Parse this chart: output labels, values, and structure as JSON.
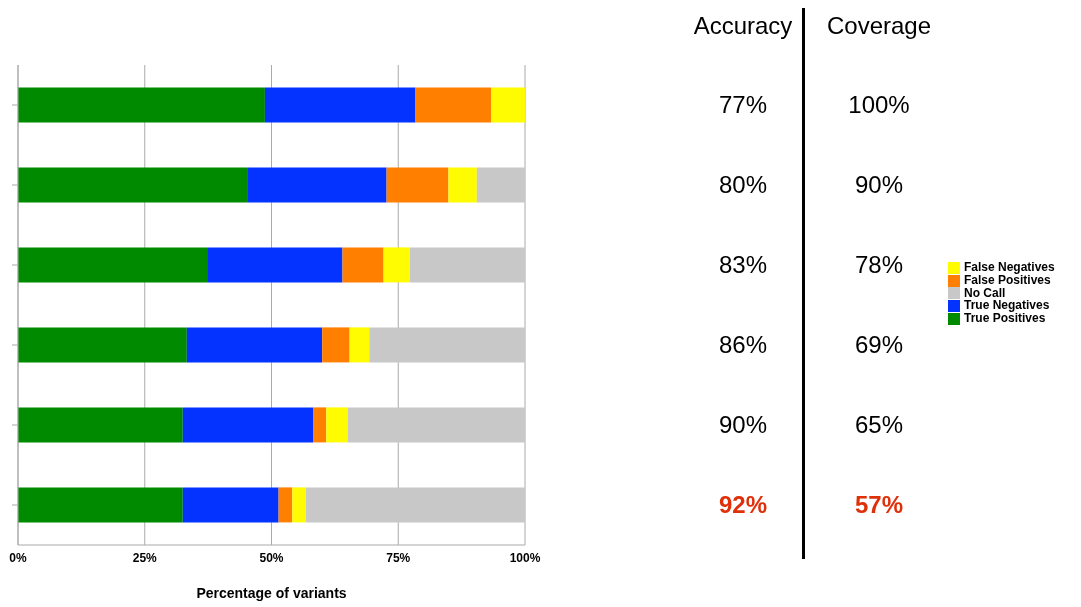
{
  "chart_data": {
    "type": "bar",
    "orientation": "horizontal",
    "stacked": true,
    "xlabel": "Percentage of variants",
    "categories": [
      null,
      null,
      null,
      null,
      null,
      null
    ],
    "series": [
      {
        "name": "True Positives",
        "color": "#008a00",
        "values": [
          48.7,
          45.2,
          37.3,
          33.3,
          32.5,
          32.5
        ]
      },
      {
        "name": "True Negatives",
        "color": "#0433ff",
        "values": [
          29.7,
          27.5,
          26.7,
          26.7,
          25.7,
          18.9
        ]
      },
      {
        "name": "False Positives",
        "color": "#ff7f00",
        "values": [
          14.9,
          12.2,
          8.1,
          5.4,
          2.6,
          2.7
        ]
      },
      {
        "name": "False Negatives",
        "color": "#fffb00",
        "values": [
          6.7,
          5.6,
          5.2,
          3.9,
          4.2,
          2.7
        ]
      },
      {
        "name": "No Call",
        "color": "#c8c8c8",
        "values": [
          0,
          9.5,
          22.7,
          30.7,
          35.0,
          43.2
        ]
      }
    ],
    "xlim": [
      0,
      100
    ],
    "xticks": [
      {
        "value": 0,
        "label": "0%"
      },
      {
        "value": 25,
        "label": "25%"
      },
      {
        "value": 50,
        "label": "50%"
      },
      {
        "value": 75,
        "label": "75%"
      },
      {
        "value": 100,
        "label": "100%"
      }
    ],
    "grid": "x",
    "legend": "right",
    "annotations": [
      "Accuracy",
      "Coverage",
      "77%",
      "100%",
      "80%",
      "90%",
      "83%",
      "78%",
      "86%",
      "69%",
      "90%",
      "65%",
      "92%",
      "57%"
    ]
  }
}
